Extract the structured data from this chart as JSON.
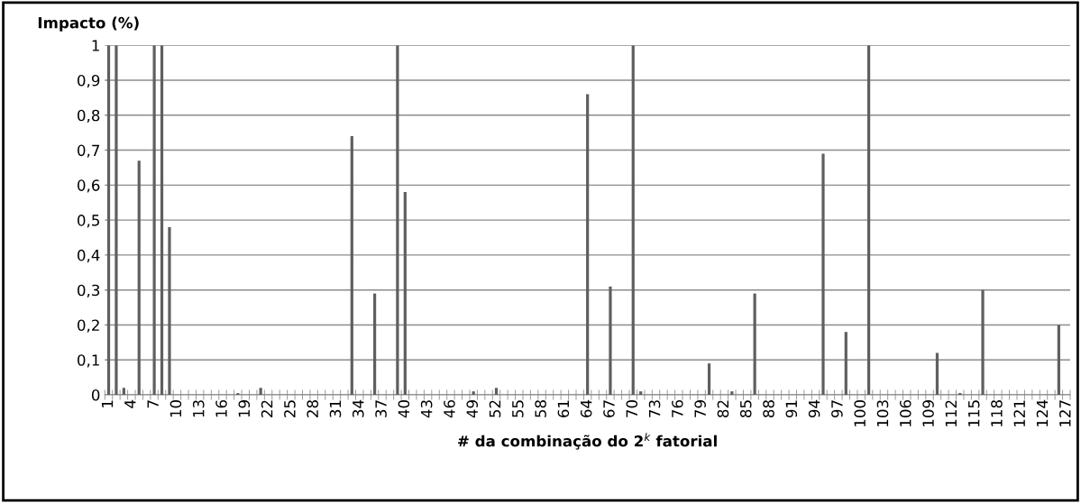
{
  "chart_data": {
    "type": "bar",
    "xlabel": "# da combinação do 2$^{k}$ fatorial",
    "ylabel": "Impacto (%)",
    "categories": [
      "1",
      null,
      null,
      "4",
      null,
      null,
      "7",
      null,
      null,
      "10",
      null,
      null,
      "13",
      null,
      null,
      "16",
      null,
      null,
      "19",
      null,
      null,
      "22",
      null,
      null,
      "25",
      null,
      null,
      "28",
      null,
      null,
      "31",
      null,
      null,
      "34",
      null,
      null,
      "37",
      null,
      null,
      "40",
      null,
      null,
      "43",
      null,
      null,
      "46",
      null,
      null,
      "49",
      null,
      null,
      "52",
      null,
      null,
      "55",
      null,
      null,
      "58",
      null,
      null,
      "61",
      null,
      null,
      "64",
      null,
      null,
      "67",
      null,
      null,
      "70",
      null,
      null,
      "73",
      null,
      null,
      "76",
      null,
      null,
      "79",
      null,
      null,
      "82",
      null,
      null,
      "85",
      null,
      null,
      "88",
      null,
      null,
      "91",
      null,
      null,
      "94",
      null,
      null,
      "97",
      null,
      null,
      "100",
      null,
      null,
      "103",
      null,
      null,
      "106",
      null,
      null,
      "109",
      null,
      null,
      "112",
      null,
      null,
      "115",
      null,
      null,
      "118",
      null,
      null,
      "121",
      null,
      null,
      "124",
      null,
      null,
      "127"
    ],
    "values": [
      1,
      1,
      0.02,
      0,
      0.67,
      0,
      1,
      1,
      0.48,
      0,
      0,
      0,
      0,
      0,
      0,
      0,
      0,
      0.005,
      0,
      0,
      0.02,
      0,
      0,
      0,
      0,
      0,
      0,
      0,
      0,
      0,
      0,
      0,
      0.74,
      0,
      0,
      0.29,
      0,
      0,
      1,
      0.58,
      0,
      0,
      0,
      0,
      0,
      0,
      0,
      0,
      0.01,
      0,
      0,
      0.02,
      0,
      0,
      0,
      0,
      0,
      0,
      0,
      0,
      0,
      0,
      0,
      0.86,
      0,
      0,
      0.31,
      0,
      0,
      1,
      0.01,
      0,
      0,
      0,
      0,
      0,
      0,
      0,
      0,
      0.09,
      0,
      0,
      0.01,
      0,
      0,
      0.29,
      0,
      0,
      0,
      0,
      0,
      0,
      0,
      0,
      0.69,
      0,
      0,
      0.18,
      0,
      0,
      1,
      0,
      0,
      0,
      0,
      0,
      0,
      0,
      0,
      0.12,
      0,
      0,
      0.005,
      0,
      0,
      0.3,
      0,
      0,
      0,
      0,
      0,
      0,
      0,
      0,
      0,
      0.2,
      0
    ],
    "color": "#5f5f5f",
    "ylim": [
      0,
      1
    ],
    "yticks": [
      0,
      {
        "value": 0.1,
        "label": "0,1"
      },
      {
        "value": 0.2,
        "label": "0,2"
      },
      {
        "value": 0.3,
        "label": "0,3"
      },
      {
        "value": 0.4,
        "label": "0,4"
      },
      {
        "value": 0.5,
        "label": "0,5"
      },
      {
        "value": 0.6,
        "label": "0,6"
      },
      {
        "value": 0.7,
        "label": "0,7"
      },
      {
        "value": 0.8,
        "label": "0,8"
      },
      {
        "value": 0.9,
        "label": "0,9"
      },
      1
    ],
    "grid": "y",
    "legend": false
  }
}
